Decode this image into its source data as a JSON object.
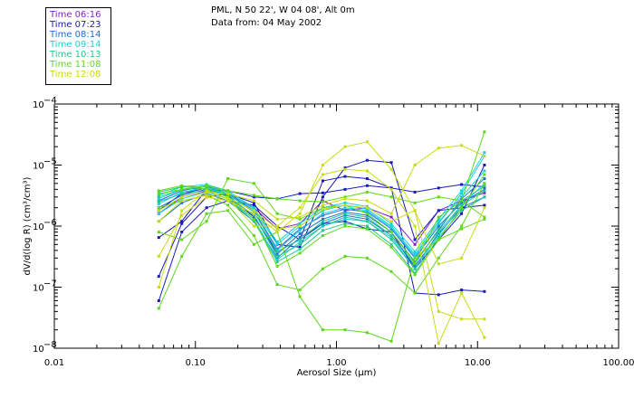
{
  "header": {
    "location": "PML, N 50 22', W 04 08', Alt 0m",
    "date": "Data from: 04 May 2002"
  },
  "legend": [
    {
      "label": "Time 06:16",
      "color": "#8a1ecf"
    },
    {
      "label": "Time 07:23",
      "color": "#1a1ab8"
    },
    {
      "label": "Time 08:14",
      "color": "#1a6fd8"
    },
    {
      "label": "Time 09:14",
      "color": "#1ccfdc"
    },
    {
      "label": "Time 10:13",
      "color": "#23c891"
    },
    {
      "label": "Time 11:08",
      "color": "#5fd81c"
    },
    {
      "label": "Time 12:08",
      "color": "#c8dc14"
    }
  ],
  "chart_data": {
    "type": "line",
    "title": "",
    "xlabel": "Aerosol Size (μm)",
    "ylabel": "dV/d(log R) (cm³/cm³)",
    "xscale": "log",
    "yscale": "log",
    "xlim": [
      0.01,
      100
    ],
    "ylim": [
      1e-08,
      0.0001
    ],
    "x_ticks": [
      "0.01",
      "0.10",
      "1.00",
      "10.00",
      "100.00"
    ],
    "y_ticks": [
      {
        "base": "10",
        "exp": "−8"
      },
      {
        "base": "10",
        "exp": "−7"
      },
      {
        "base": "10",
        "exp": "−6"
      },
      {
        "base": "10",
        "exp": "−5"
      },
      {
        "base": "10",
        "exp": "−4"
      }
    ],
    "x": [
      0.055,
      0.08,
      0.12,
      0.17,
      0.26,
      0.38,
      0.55,
      0.8,
      1.15,
      1.65,
      2.45,
      3.6,
      5.3,
      7.7,
      11.2
    ],
    "series": [
      {
        "name": "06:16 a",
        "color": "#8a1ecf",
        "values": [
          1.6e-06,
          3e-06,
          3.7e-06,
          3.4e-06,
          2e-06,
          9e-07,
          1.1e-06,
          2.6e-06,
          1.8e-06,
          2e-06,
          1.4e-06,
          5e-07,
          1.8e-06,
          2.6e-06,
          3.5e-06
        ]
      },
      {
        "name": "07:23 a",
        "color": "#1a1ab8",
        "values": [
          1.5e-07,
          1.1e-06,
          3e-06,
          3.4e-06,
          2.4e-06,
          5e-07,
          4.5e-07,
          3e-06,
          9e-06,
          1.2e-05,
          1.1e-05,
          6e-07,
          1.8e-06,
          2e-06,
          2.2e-06
        ]
      },
      {
        "name": "07:23 b",
        "color": "#1a1ab8",
        "values": [
          6.5e-07,
          1.2e-06,
          4e-06,
          3.8e-06,
          3e-06,
          2.8e-06,
          3.4e-06,
          3.5e-06,
          4e-06,
          4.6e-06,
          4.2e-06,
          3.6e-06,
          4.2e-06,
          4.8e-06,
          4.4e-06
        ]
      },
      {
        "name": "07:23 c",
        "color": "#1a1ab8",
        "values": [
          6e-08,
          8e-07,
          2e-06,
          2.6e-06,
          2.2e-06,
          1e-06,
          6e-07,
          5.5e-06,
          6.5e-06,
          6e-06,
          4.2e-06,
          8e-08,
          7.5e-08,
          9e-08,
          8.5e-08
        ]
      },
      {
        "name": "07:23 d",
        "color": "#1a1ab8",
        "values": [
          1.8e-06,
          3.4e-06,
          4.2e-06,
          3.2e-06,
          1.4e-06,
          3.8e-07,
          6e-07,
          1.1e-06,
          1.2e-06,
          9e-07,
          8e-07,
          2e-07,
          6e-07,
          1.6e-06,
          1e-05
        ]
      },
      {
        "name": "08:14 a",
        "color": "#1a6fd8",
        "values": [
          2.6e-06,
          3.8e-06,
          4.5e-06,
          3.4e-06,
          1.8e-06,
          4.2e-07,
          9e-07,
          1.5e-06,
          1.9e-06,
          1.7e-06,
          9e-07,
          3e-07,
          1e-06,
          2.4e-06,
          4e-06
        ]
      },
      {
        "name": "08:14 b",
        "color": "#1a6fd8",
        "values": [
          2e-06,
          3.2e-06,
          4e-06,
          3e-06,
          1.5e-06,
          3.5e-07,
          7.5e-07,
          1.3e-06,
          1.7e-06,
          1.5e-06,
          8e-07,
          2.6e-07,
          8.5e-07,
          2.8e-06,
          6e-06
        ]
      },
      {
        "name": "08:14 c",
        "color": "#1a6fd8",
        "values": [
          1.2e-06,
          2.4e-06,
          3.4e-06,
          2.6e-06,
          1.2e-06,
          3e-07,
          6.5e-07,
          1.1e-06,
          1.5e-06,
          1.3e-06,
          7e-07,
          2.2e-07,
          7.5e-07,
          2e-06,
          3e-06
        ]
      },
      {
        "name": "09:14 a",
        "color": "#1ccfdc",
        "values": [
          2.8e-06,
          4e-06,
          4.6e-06,
          3.6e-06,
          1.9e-06,
          5e-07,
          1e-06,
          1.8e-06,
          2.2e-06,
          1.9e-06,
          1e-06,
          3.4e-07,
          1.2e-06,
          3e-06,
          8e-06
        ]
      },
      {
        "name": "09:14 b",
        "color": "#1ccfdc",
        "values": [
          2.3e-06,
          3.6e-06,
          4.2e-06,
          3.3e-06,
          1.7e-06,
          4e-07,
          8.5e-07,
          1.6e-06,
          2e-06,
          1.8e-06,
          9.5e-07,
          3.2e-07,
          1.1e-06,
          3.4e-06,
          1.4e-05
        ]
      },
      {
        "name": "09:14 c",
        "color": "#1ccfdc",
        "values": [
          1.6e-06,
          2.8e-06,
          3.6e-06,
          2.8e-06,
          1.3e-06,
          2.8e-07,
          5.5e-07,
          1e-06,
          1.3e-06,
          1.2e-06,
          6.5e-07,
          2e-07,
          7e-07,
          2.2e-06,
          5e-06
        ]
      },
      {
        "name": "09:14 d",
        "color": "#1ccfdc",
        "values": [
          3.2e-06,
          4.4e-06,
          4.8e-06,
          3.8e-06,
          2e-06,
          5.5e-07,
          1.1e-06,
          2e-06,
          2.4e-06,
          2.1e-06,
          1.1e-06,
          3.8e-07,
          1.3e-06,
          3.8e-06,
          1.6e-05
        ]
      },
      {
        "name": "10:13 a",
        "color": "#23c891",
        "values": [
          3.6e-06,
          4.4e-06,
          4.4e-06,
          3.4e-06,
          1.7e-06,
          3.8e-07,
          6e-07,
          1.2e-06,
          1.6e-06,
          1.4e-06,
          7e-07,
          2.4e-07,
          9e-07,
          2.6e-06,
          4.5e-06
        ]
      },
      {
        "name": "10:13 b",
        "color": "#23c891",
        "values": [
          3e-06,
          4e-06,
          4.1e-06,
          3.1e-06,
          1.5e-06,
          3.2e-07,
          5e-07,
          1e-06,
          1.4e-06,
          1.2e-06,
          6e-07,
          2e-07,
          8e-07,
          2.2e-06,
          3.8e-06
        ]
      },
      {
        "name": "10:13 c",
        "color": "#23c891",
        "values": [
          2.5e-06,
          3.4e-06,
          3.8e-06,
          2.8e-06,
          1.2e-06,
          2.6e-07,
          4.2e-07,
          8.5e-07,
          1.1e-06,
          1e-06,
          5e-07,
          1.7e-07,
          6.5e-07,
          1.8e-06,
          3e-06
        ]
      },
      {
        "name": "11:08 a",
        "color": "#5fd81c",
        "values": [
          3.8e-06,
          4.6e-06,
          4e-06,
          3e-06,
          1.3e-06,
          2.2e-07,
          3.6e-07,
          7e-07,
          1e-06,
          9e-07,
          4.5e-07,
          1.6e-07,
          6e-07,
          2e-06,
          7e-06
        ]
      },
      {
        "name": "11:08 b",
        "color": "#5fd81c",
        "values": [
          3.4e-06,
          4e-06,
          4.6e-06,
          3.8e-06,
          3.2e-06,
          2.8e-06,
          2.6e-06,
          2.5e-06,
          3e-06,
          3.6e-06,
          3e-06,
          2.4e-06,
          3e-06,
          2.6e-06,
          1.4e-06
        ]
      },
      {
        "name": "11:08 c",
        "color": "#5fd81c",
        "values": [
          4.5e-08,
          3.2e-07,
          1.6e-06,
          1.8e-06,
          5e-07,
          8e-07,
          7e-08,
          2e-08,
          2e-08,
          1.8e-08,
          1.3e-08,
          3e-07,
          6e-07,
          9e-07,
          1.3e-06
        ]
      },
      {
        "name": "11:08 d",
        "color": "#5fd81c",
        "values": [
          2e-06,
          2.6e-06,
          3.2e-06,
          2.2e-06,
          7e-07,
          1.1e-07,
          9e-08,
          2e-07,
          3.2e-07,
          3e-07,
          1.8e-07,
          8e-08,
          3e-07,
          1e-06,
          5e-06
        ]
      },
      {
        "name": "11:08 e",
        "color": "#5fd81c",
        "values": [
          8e-07,
          6e-07,
          1.2e-06,
          6e-06,
          5e-06,
          1.6e-06,
          1.3e-06,
          2e-06,
          2.2e-06,
          1.6e-06,
          8e-07,
          2.5e-07,
          1.4e-06,
          2.6e-06,
          3.5e-05
        ]
      },
      {
        "name": "12:08 a",
        "color": "#c8dc14",
        "values": [
          3.2e-07,
          1.5e-06,
          3e-06,
          2.6e-06,
          1.6e-06,
          8e-07,
          1.6e-06,
          1e-05,
          2e-05,
          2.4e-05,
          8.5e-06,
          1.8e-06,
          4e-08,
          3e-08,
          3e-08
        ]
      },
      {
        "name": "12:08 b",
        "color": "#c8dc14",
        "values": [
          1e-07,
          1.8e-06,
          3.8e-06,
          2.8e-06,
          1e-06,
          1e-06,
          2e-06,
          7e-06,
          8.5e-06,
          8e-06,
          4e-06,
          1e-06,
          1.2e-08,
          8e-08,
          1.5e-08
        ]
      },
      {
        "name": "12:08 c",
        "color": "#c8dc14",
        "values": [
          1.8e-06,
          3e-06,
          3.6e-06,
          3.4e-06,
          2.6e-06,
          1.3e-06,
          1.4e-06,
          2.2e-06,
          2.8e-06,
          2.6e-06,
          1.6e-06,
          1e-05,
          1.9e-05,
          2.1e-05,
          1.4e-05
        ]
      },
      {
        "name": "12:08 d",
        "color": "#c8dc14",
        "values": [
          1.2e-06,
          2.6e-06,
          3.2e-06,
          2.9e-06,
          1.8e-06,
          9e-07,
          1e-06,
          1.9e-06,
          2.2e-06,
          2e-06,
          1.2e-06,
          1.8e-06,
          2.4e-07,
          3e-07,
          2e-06
        ]
      }
    ]
  }
}
